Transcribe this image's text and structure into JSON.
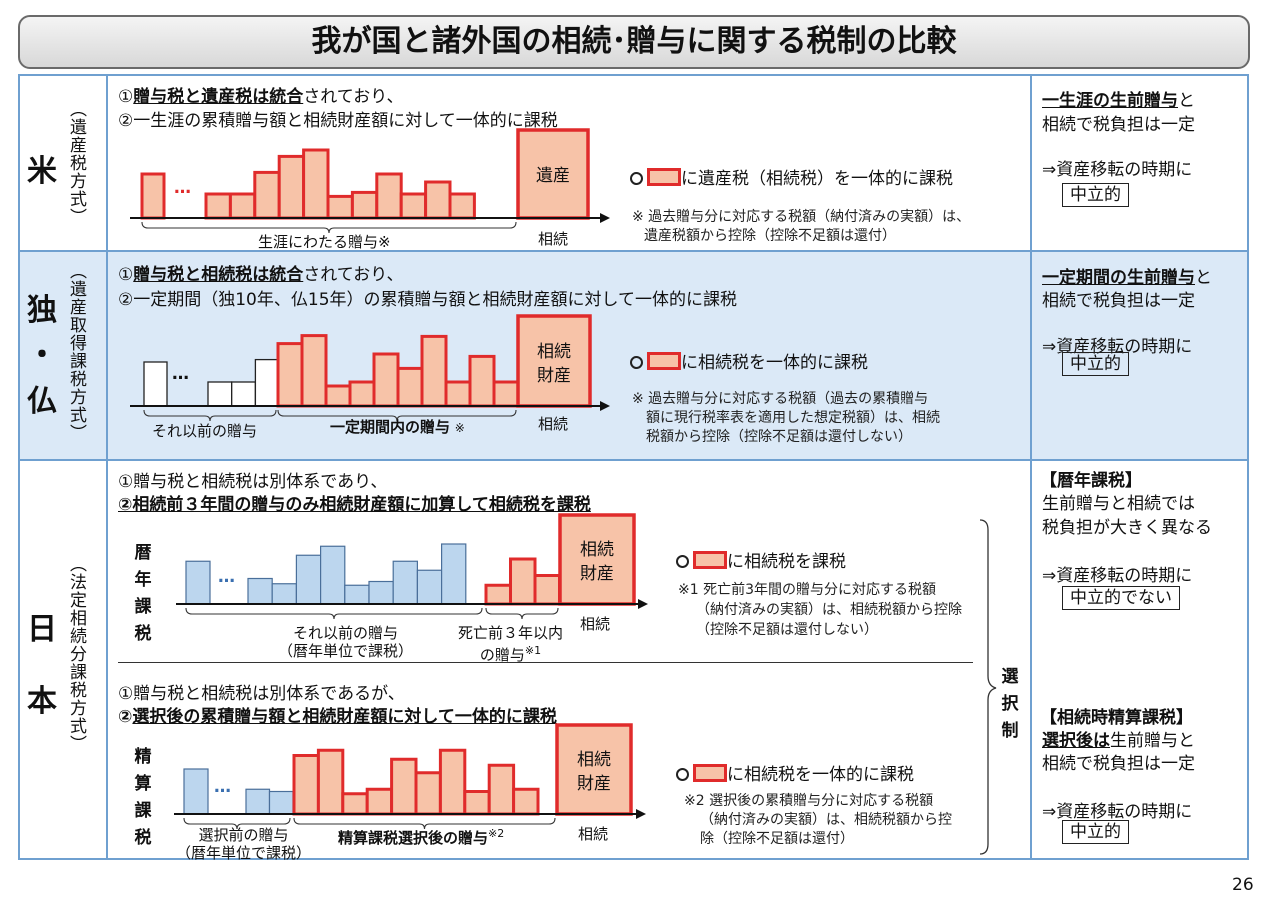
{
  "title": "我が国と諸外国の相続･贈与に関する税制の比較",
  "page_number": "26",
  "colors": {
    "bar_fill": "#f7c3a8",
    "bar_border": "#e02b2b",
    "blue_fill": "#bcd6ee",
    "blue_border": "#4a6f9a",
    "band": "#dbe9f7",
    "grid": "#6fa0d0"
  },
  "us": {
    "country": "米",
    "subtitle": "（遺産税方式）",
    "line1_parts": [
      "①",
      "贈与税と遺産税は統合",
      "されており、"
    ],
    "line2": "②一生涯の累積贈与額と相続財産額に対して一体的に課税",
    "big_box": "遺産",
    "dots": "…",
    "span_label": "生涯にわたる贈与※",
    "inherit_label": "相続",
    "legend_text": "に遺産税（相続税）を一体的に課税",
    "note_lines": [
      "※  過去贈与分に対応する税額（納付済みの実額）は、",
      "遺産税額から控除（控除不足額は還付）"
    ],
    "right_parts": [
      "一生涯の生前贈与",
      "と"
    ],
    "right_line2": "相続で税負担は一定",
    "right_line3": "⇒資産移転の時期に",
    "right_box": "中立的",
    "bars": [
      0.55,
      0.3,
      0.3,
      0.57,
      0.77,
      0.85,
      0.27,
      0.32,
      0.55,
      0.3,
      0.45,
      0.3
    ]
  },
  "de_fr": {
    "country_top": "独",
    "country_mid": "・",
    "country_bot": "仏",
    "subtitle": "（遺産取得課税方式）",
    "line1_parts": [
      "①",
      "贈与税と相続税は統合",
      "されており、"
    ],
    "line2": "②一定期間（独10年、仏15年）の累積贈与額と相続財産額に対して一体的に課税",
    "big_box_lines": [
      "相続",
      "財産"
    ],
    "dots": "…",
    "span_label_1": "それ以前の贈与",
    "span_label_2": "一定期間内の贈与",
    "span_mark": "※",
    "inherit_label": "相続",
    "legend_text": "に相続税を一体的に課税",
    "note_lines": [
      "※  過去贈与分に対応する税額（過去の累積贈与",
      "額に現行税率表を適用した想定税額）は、相続",
      "税額から控除（控除不足額は還付しない）"
    ],
    "right_parts": [
      "一定期間の生前贈与",
      "と"
    ],
    "right_line2": "相続で税負担は一定",
    "right_line3": "⇒資産移転の時期に",
    "right_box": "中立的",
    "white_bars": [
      0.55,
      0.3,
      0.3,
      0.58
    ],
    "red_bars": [
      0.78,
      0.88,
      0.25,
      0.3,
      0.65,
      0.47,
      0.87,
      0.3,
      0.62,
      0.3
    ]
  },
  "japan": {
    "country_top": "日",
    "country_bot": "本",
    "subtitle": "（法定相続分課税方式）",
    "a_line1": "①贈与税と相続税は別体系であり、",
    "a_line2": "②相続前３年間の贈与のみ相続財産額に加算して相続税を課税",
    "a_vlabel": [
      "暦",
      "年",
      "課",
      "税"
    ],
    "a_big_box_lines": [
      "相続",
      "財産"
    ],
    "a_dots": "…",
    "a_span1_lines": [
      "それ以前の贈与",
      "（暦年単位で課税）"
    ],
    "a_span2_lines": [
      "死亡前３年以内",
      "の贈与"
    ],
    "a_span2_mark": "※1",
    "a_inherit_label": "相続",
    "a_legend_text": "に相続税を課税",
    "a_note_lines": [
      "※1  死亡前3年間の贈与分に対応する税額",
      "（納付済みの実額）は、相続税額から控除",
      "（控除不足額は還付しない）"
    ],
    "a_blue_bars": [
      0.57,
      0.34,
      0.27,
      0.65,
      0.77,
      0.25,
      0.3,
      0.57,
      0.45,
      0.8
    ],
    "a_red_bars": [
      0.25,
      0.6,
      0.38
    ],
    "b_line1": "①贈与税と相続税は別体系であるが、",
    "b_line2_parts": [
      "②",
      "選択後の累積贈与額と相続財産額に対して一体的に課税"
    ],
    "b_vlabel": [
      "精",
      "算",
      "課",
      "税"
    ],
    "b_big_box_lines": [
      "相続",
      "財産"
    ],
    "b_dots": "…",
    "b_span1_lines": [
      "選択前の贈与",
      "（暦年単位で課税）"
    ],
    "b_span2": "精算課税選択後の贈与",
    "b_span2_mark": "※2",
    "b_inherit_label": "相続",
    "b_legend_text": "に相続税を一体的に課税",
    "b_note_lines": [
      "※2  選択後の累積贈与分に対応する税額",
      "（納付済みの実額）は、相続税額から控",
      "除（控除不足額は還付）"
    ],
    "b_blue_bars": [
      0.6,
      0.33,
      0.3
    ],
    "b_red_bars": [
      0.78,
      0.85,
      0.27,
      0.33,
      0.73,
      0.55,
      0.85,
      0.3,
      0.65,
      0.33
    ],
    "choice_label": [
      "選",
      "択",
      "制"
    ],
    "right_a_title": "【暦年課税】",
    "right_a_line2": "生前贈与と相続では",
    "right_a_line3": "税負担が大きく異なる",
    "right_a_line4": "⇒資産移転の時期に",
    "right_a_box": "中立的でない",
    "right_b_title": "【相続時精算課税】",
    "right_b_parts": [
      "選択後は",
      "生前贈与と"
    ],
    "right_b_line3": "相続で税負担は一定",
    "right_b_line4": "⇒資産移転の時期に",
    "right_b_box": "中立的"
  }
}
